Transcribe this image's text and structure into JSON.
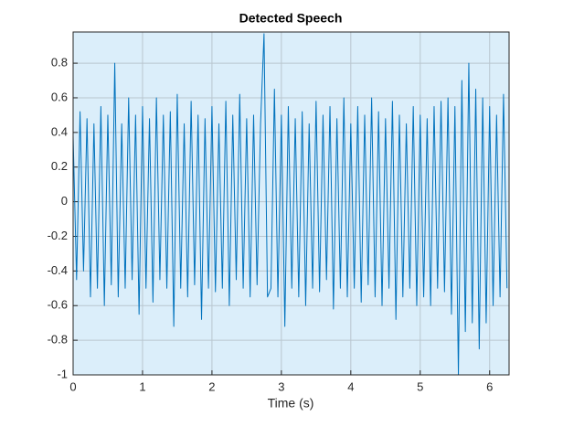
{
  "chart_data": {
    "type": "line",
    "title": "Detected Speech",
    "xlabel": "Time (s)",
    "x": [
      0,
      0.05,
      0.1,
      0.15,
      0.2,
      0.25,
      0.3,
      0.35,
      0.4,
      0.45,
      0.5,
      0.55,
      0.6,
      0.65,
      0.7,
      0.75,
      0.8,
      0.85,
      0.9,
      0.95,
      1,
      1.05,
      1.1,
      1.15,
      1.2,
      1.25,
      1.3,
      1.35,
      1.4,
      1.45,
      1.5,
      1.55,
      1.6,
      1.65,
      1.7,
      1.75,
      1.8,
      1.85,
      1.9,
      1.95,
      2,
      2.05,
      2.1,
      2.15,
      2.2,
      2.25,
      2.3,
      2.35,
      2.4,
      2.45,
      2.5,
      2.55,
      2.6,
      2.65,
      2.7,
      2.75,
      2.8,
      2.85,
      2.9,
      2.95,
      3,
      3.05,
      3.1,
      3.15,
      3.2,
      3.25,
      3.3,
      3.35,
      3.4,
      3.45,
      3.5,
      3.55,
      3.6,
      3.65,
      3.7,
      3.75,
      3.8,
      3.85,
      3.9,
      3.95,
      4,
      4.05,
      4.1,
      4.15,
      4.2,
      4.25,
      4.3,
      4.35,
      4.4,
      4.45,
      4.5,
      4.55,
      4.6,
      4.65,
      4.7,
      4.75,
      4.8,
      4.85,
      4.9,
      4.95,
      5,
      5.05,
      5.1,
      5.15,
      5.2,
      5.25,
      5.3,
      5.35,
      5.4,
      5.45,
      5.5,
      5.55,
      5.6,
      5.65,
      5.7,
      5.75,
      5.8,
      5.85,
      5.9,
      5.95,
      6,
      6.05,
      6.1,
      6.15,
      6.2,
      6.25
    ],
    "values": [
      0.38,
      -0.45,
      0.52,
      -0.4,
      0.48,
      -0.55,
      0.45,
      -0.5,
      0.55,
      -0.6,
      0.5,
      -0.48,
      0.8,
      -0.55,
      0.45,
      -0.5,
      0.6,
      -0.45,
      0.5,
      -0.65,
      0.55,
      -0.5,
      0.48,
      -0.58,
      0.6,
      -0.45,
      0.5,
      -0.5,
      0.52,
      -0.72,
      0.62,
      -0.5,
      0.45,
      -0.55,
      0.58,
      -0.48,
      0.5,
      -0.68,
      0.48,
      -0.5,
      0.55,
      -0.52,
      0.45,
      -0.5,
      0.58,
      -0.6,
      0.5,
      -0.45,
      0.62,
      -0.5,
      0.48,
      -0.55,
      0.5,
      -0.48,
      0.45,
      0.97,
      -0.55,
      -0.5,
      0.65,
      -0.55,
      0.5,
      -0.72,
      0.55,
      -0.5,
      0.48,
      -0.55,
      0.52,
      -0.6,
      0.45,
      -0.5,
      0.58,
      -0.52,
      0.5,
      -0.45,
      0.55,
      -0.62,
      0.48,
      -0.5,
      0.6,
      -0.55,
      0.45,
      -0.5,
      0.55,
      -0.58,
      0.5,
      -0.48,
      0.6,
      -0.55,
      0.52,
      -0.6,
      0.48,
      -0.5,
      0.58,
      -0.68,
      0.5,
      -0.55,
      0.45,
      -0.5,
      0.55,
      -0.6,
      0.5,
      -0.55,
      0.48,
      -0.6,
      0.55,
      -0.5,
      0.58,
      -0.52,
      0.6,
      -0.65,
      0.55,
      -1.0,
      0.7,
      -0.75,
      0.8,
      -0.7,
      0.65,
      -0.85,
      0.6,
      -0.7,
      0.55,
      -0.6,
      0.5,
      -0.55,
      0.62,
      -0.5
    ],
    "color": "#0072bd",
    "xlim": [
      0,
      6.28
    ],
    "ylim": [
      -1,
      0.98
    ],
    "xticks": [
      0,
      1,
      2,
      3,
      4,
      5,
      6
    ],
    "yticks": [
      -1,
      -0.8,
      -0.6,
      -0.4,
      -0.2,
      0,
      0.2,
      0.4,
      0.6,
      0.8
    ],
    "grid": true
  }
}
